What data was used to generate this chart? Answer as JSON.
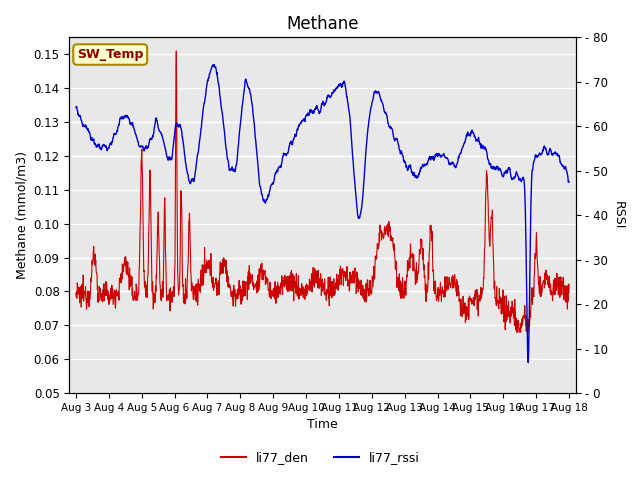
{
  "title": "Methane",
  "xlabel": "Time",
  "ylabel_left": "Methane (mmol/m3)",
  "ylabel_right": "RSSI",
  "ylim_left": [
    0.05,
    0.155
  ],
  "ylim_right": [
    0,
    80
  ],
  "yticks_left": [
    0.05,
    0.06,
    0.07,
    0.08,
    0.09,
    0.1,
    0.11,
    0.12,
    0.13,
    0.14,
    0.15
  ],
  "yticks_right": [
    0,
    10,
    20,
    30,
    40,
    50,
    60,
    70,
    80
  ],
  "xtick_labels": [
    "Aug 3",
    "Aug 4",
    "Aug 5",
    "Aug 6",
    "Aug 7",
    "Aug 8",
    "Aug 9",
    "Aug 10",
    "Aug 11",
    "Aug 12",
    "Aug 13",
    "Aug 14",
    "Aug 15",
    "Aug 16",
    "Aug 17",
    "Aug 18"
  ],
  "bg_color": "#e8e8e8",
  "bg_color_dark": "#d8d8d8",
  "line_red_color": "#cc0000",
  "line_blue_color": "#0000cc",
  "legend_red": "li77_den",
  "legend_blue": "li77_rssi",
  "sw_temp_label": "SW_Temp",
  "sw_temp_bg": "#ffffcc",
  "sw_temp_border": "#aa8800",
  "sw_temp_text_color": "#880000",
  "title_fontsize": 12,
  "axis_fontsize": 9,
  "tick_fontsize": 8.5
}
